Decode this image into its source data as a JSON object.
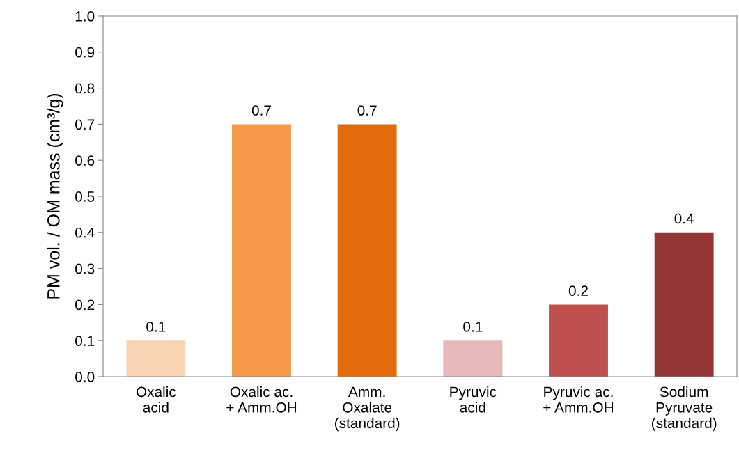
{
  "chart_data": {
    "type": "bar",
    "ylabel": "PM vol. / OM mass (cm³/g)",
    "categories": [
      "Oxalic\nacid",
      "Oxalic ac.\n+ Amm.OH",
      "Amm.\nOxalate\n(standard)",
      "Pyruvic\nacid",
      "Pyruvic ac.\n+ Amm.OH",
      "Sodium\nPyruvate\n(standard)"
    ],
    "values": [
      0.1,
      0.7,
      0.7,
      0.1,
      0.2,
      0.4
    ],
    "colors": [
      "#fad3b3",
      "#f59847",
      "#e36c0a",
      "#e6b8b7",
      "#c0504d",
      "#953735"
    ],
    "ylim": [
      0,
      1.0
    ],
    "yticks": [
      {
        "value": 0,
        "label": "0.0"
      },
      {
        "value": 0.1,
        "label": "0.1"
      },
      {
        "value": 0.2,
        "label": "0.2"
      },
      {
        "value": 0.3,
        "label": "0.3"
      },
      {
        "value": 0.4,
        "label": "0.4"
      },
      {
        "value": 0.5,
        "label": "0.5"
      },
      {
        "value": 0.6,
        "label": "0.6"
      },
      {
        "value": 0.7,
        "label": "0.7"
      },
      {
        "value": 0.8,
        "label": "0.8"
      },
      {
        "value": 0.9,
        "label": "0.9"
      },
      {
        "value": 1.0,
        "label": "1.0"
      }
    ],
    "data_labels": true,
    "grid": false,
    "legend": false
  }
}
